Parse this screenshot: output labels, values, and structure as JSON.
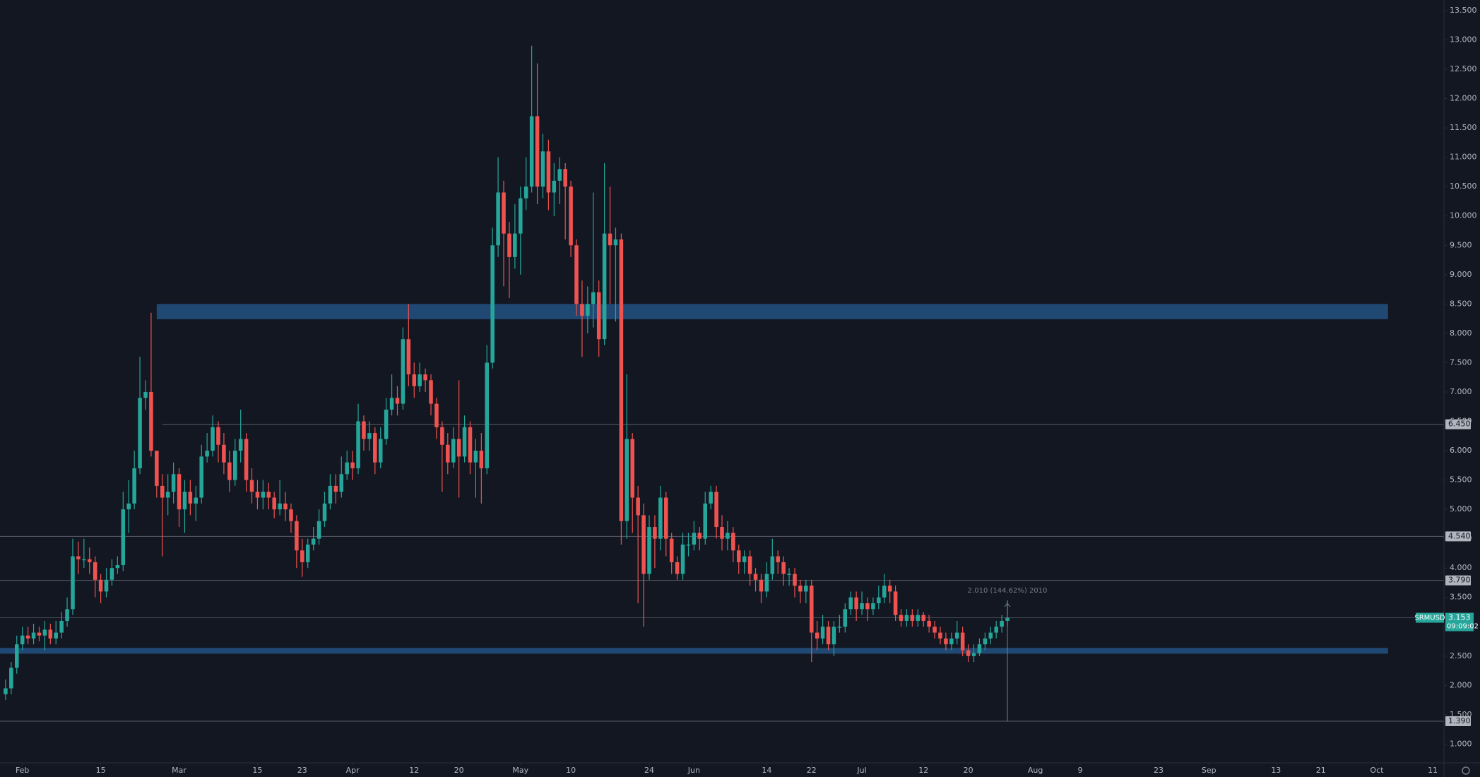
{
  "chart_data": {
    "type": "candlestick",
    "symbol": "SRMUSD",
    "countdown": "09:09:02",
    "up_color": "#26a69a",
    "down_color": "#ef5350",
    "zone_color": "#1f4873",
    "level_color": "#787b86",
    "xlim": [
      "Jan 28",
      "Oct 13"
    ],
    "ylim": [
      0.68,
      13.68
    ],
    "yticks": [
      {
        "value": 1,
        "label": "1.000"
      },
      {
        "value": 1.5,
        "label": "1.500"
      },
      {
        "value": 2,
        "label": "2.000"
      },
      {
        "value": 2.5,
        "label": "2.500"
      },
      {
        "value": 3,
        "label": "3.000"
      },
      {
        "value": 3.5,
        "label": "3.500"
      },
      {
        "value": 4,
        "label": "4.000"
      },
      {
        "value": 4.5,
        "label": "4.500"
      },
      {
        "value": 5,
        "label": "5.000"
      },
      {
        "value": 5.5,
        "label": "5.500"
      },
      {
        "value": 6,
        "label": "6.000"
      },
      {
        "value": 6.5,
        "label": "6.500"
      },
      {
        "value": 7,
        "label": "7.000"
      },
      {
        "value": 7.5,
        "label": "7.500"
      },
      {
        "value": 8,
        "label": "8.000"
      },
      {
        "value": 8.5,
        "label": "8.500"
      },
      {
        "value": 9,
        "label": "9.000"
      },
      {
        "value": 9.5,
        "label": "9.500"
      },
      {
        "value": 10,
        "label": "10.000"
      },
      {
        "value": 10.5,
        "label": "10.500"
      },
      {
        "value": 11,
        "label": "11.000"
      },
      {
        "value": 11.5,
        "label": "11.500"
      },
      {
        "value": 12,
        "label": "12.000"
      },
      {
        "value": 12.5,
        "label": "12.500"
      },
      {
        "value": 13,
        "label": "13.000"
      },
      {
        "value": 13.5,
        "label": "13.500"
      }
    ],
    "xticks": [
      {
        "value": "Feb 1",
        "label": "Feb"
      },
      {
        "value": "Feb 15",
        "label": "15"
      },
      {
        "value": "Mar 1",
        "label": "Mar"
      },
      {
        "value": "Mar 15",
        "label": "15"
      },
      {
        "value": "Mar 23",
        "label": "23"
      },
      {
        "value": "Apr 1",
        "label": "Apr"
      },
      {
        "value": "Apr 12",
        "label": "12"
      },
      {
        "value": "Apr 20",
        "label": "20"
      },
      {
        "value": "May 1",
        "label": "May"
      },
      {
        "value": "May 10",
        "label": "10"
      },
      {
        "value": "May 24",
        "label": "24"
      },
      {
        "value": "Jun 1",
        "label": "Jun"
      },
      {
        "value": "Jun 14",
        "label": "14"
      },
      {
        "value": "Jun 22",
        "label": "22"
      },
      {
        "value": "Jul 1",
        "label": "Jul"
      },
      {
        "value": "Jul 12",
        "label": "12"
      },
      {
        "value": "Jul 20",
        "label": "20"
      },
      {
        "value": "Aug 1",
        "label": "Aug"
      },
      {
        "value": "Aug 9",
        "label": "9"
      },
      {
        "value": "Aug 23",
        "label": "23"
      },
      {
        "value": "Sep 1",
        "label": "Sep"
      },
      {
        "value": "Sep 13",
        "label": "13"
      },
      {
        "value": "Sep 21",
        "label": "21"
      },
      {
        "value": "Oct 1",
        "label": "Oct"
      },
      {
        "value": "Oct 11",
        "label": "11"
      }
    ],
    "levels": [
      {
        "value": 6.45,
        "label": "6.450",
        "from": "Feb 26"
      },
      {
        "value": 4.54,
        "label": "4.540"
      },
      {
        "value": 3.79,
        "label": "3.790"
      },
      {
        "value": 1.39,
        "label": "1.390"
      }
    ],
    "zones": [
      {
        "range": [
          8.24,
          8.5
        ],
        "x": [
          "Feb 25",
          "Oct 3"
        ]
      },
      {
        "range": [
          2.54,
          2.64
        ],
        "x": [
          "Jan 28",
          "Oct 3"
        ]
      }
    ],
    "measure": {
      "x": "Jul 27",
      "from": 1.39,
      "change": 2.01,
      "label": "2.010 (144.62%) 2010"
    },
    "x": [
      "Jan 29",
      "Jan 30",
      "Jan 31",
      "Feb 1",
      "Feb 2",
      "Feb 3",
      "Feb 4",
      "Feb 5",
      "Feb 6",
      "Feb 7",
      "Feb 8",
      "Feb 9",
      "Feb 10",
      "Feb 11",
      "Feb 12",
      "Feb 13",
      "Feb 14",
      "Feb 15",
      "Feb 16",
      "Feb 17",
      "Feb 18",
      "Feb 19",
      "Feb 20",
      "Feb 21",
      "Feb 22",
      "Feb 23",
      "Feb 24",
      "Feb 25",
      "Feb 26",
      "Feb 27",
      "Feb 28",
      "Mar 1",
      "Mar 2",
      "Mar 3",
      "Mar 4",
      "Mar 5",
      "Mar 6",
      "Mar 7",
      "Mar 8",
      "Mar 9",
      "Mar 10",
      "Mar 11",
      "Mar 12",
      "Mar 13",
      "Mar 14",
      "Mar 15",
      "Mar 16",
      "Mar 17",
      "Mar 18",
      "Mar 19",
      "Mar 20",
      "Mar 21",
      "Mar 22",
      "Mar 23",
      "Mar 24",
      "Mar 25",
      "Mar 26",
      "Mar 27",
      "Mar 28",
      "Mar 29",
      "Mar 30",
      "Mar 31",
      "Apr 1",
      "Apr 2",
      "Apr 3",
      "Apr 4",
      "Apr 5",
      "Apr 6",
      "Apr 7",
      "Apr 8",
      "Apr 9",
      "Apr 10",
      "Apr 11",
      "Apr 12",
      "Apr 13",
      "Apr 14",
      "Apr 15",
      "Apr 16",
      "Apr 17",
      "Apr 18",
      "Apr 19",
      "Apr 20",
      "Apr 21",
      "Apr 22",
      "Apr 23",
      "Apr 24",
      "Apr 25",
      "Apr 26",
      "Apr 27",
      "Apr 28",
      "Apr 29",
      "Apr 30",
      "May 1",
      "May 2",
      "May 3",
      "May 4",
      "May 5",
      "May 6",
      "May 7",
      "May 8",
      "May 9",
      "May 10",
      "May 11",
      "May 12",
      "May 13",
      "May 14",
      "May 15",
      "May 16",
      "May 17",
      "May 18",
      "May 19",
      "May 20",
      "May 21",
      "May 22",
      "May 23",
      "May 24",
      "May 25",
      "May 26",
      "May 27",
      "May 28",
      "May 29",
      "May 30",
      "May 31",
      "Jun 1",
      "Jun 2",
      "Jun 3",
      "Jun 4",
      "Jun 5",
      "Jun 6",
      "Jun 7",
      "Jun 8",
      "Jun 9",
      "Jun 10",
      "Jun 11",
      "Jun 12",
      "Jun 13",
      "Jun 14",
      "Jun 15",
      "Jun 16",
      "Jun 17",
      "Jun 18",
      "Jun 19",
      "Jun 20",
      "Jun 21",
      "Jun 22",
      "Jun 23",
      "Jun 24",
      "Jun 25",
      "Jun 26",
      "Jun 27",
      "Jun 28",
      "Jun 29",
      "Jun 30",
      "Jul 1",
      "Jul 2",
      "Jul 3",
      "Jul 4",
      "Jul 5",
      "Jul 6",
      "Jul 7",
      "Jul 8",
      "Jul 9",
      "Jul 10",
      "Jul 11",
      "Jul 12",
      "Jul 13",
      "Jul 14",
      "Jul 15",
      "Jul 16",
      "Jul 17",
      "Jul 18",
      "Jul 19",
      "Jul 20",
      "Jul 21",
      "Jul 22",
      "Jul 23",
      "Jul 24",
      "Jul 25",
      "Jul 26",
      "Jul 27"
    ],
    "open": [
      1.85,
      1.95,
      2.3,
      2.7,
      2.85,
      2.8,
      2.9,
      2.85,
      2.95,
      2.8,
      2.9,
      3.1,
      3.3,
      4.2,
      4.15,
      4.15,
      4.1,
      3.8,
      3.6,
      3.8,
      4.0,
      4.05,
      5.0,
      5.1,
      5.7,
      6.9,
      7.0,
      6.0,
      5.4,
      5.2,
      5.3,
      5.6,
      5.0,
      5.3,
      5.1,
      5.2,
      5.9,
      6.0,
      6.4,
      6.1,
      5.8,
      5.5,
      6.0,
      6.2,
      5.5,
      5.3,
      5.2,
      5.3,
      5.2,
      5.0,
      5.1,
      5.0,
      4.8,
      4.3,
      4.1,
      4.4,
      4.5,
      4.8,
      5.1,
      5.4,
      5.3,
      5.6,
      5.8,
      5.7,
      6.5,
      6.2,
      6.3,
      5.8,
      6.2,
      6.7,
      6.9,
      6.8,
      7.9,
      7.3,
      7.1,
      7.3,
      7.2,
      6.8,
      6.4,
      6.1,
      5.8,
      6.2,
      5.9,
      6.4,
      5.8,
      6.0,
      5.7,
      7.5,
      9.5,
      10.4,
      9.7,
      9.3,
      9.7,
      10.3,
      10.5,
      11.7,
      10.5,
      11.1,
      10.4,
      10.6,
      10.8,
      10.5,
      9.5,
      8.5,
      8.3,
      8.5,
      8.7,
      7.9,
      9.7,
      9.5,
      9.6,
      4.8,
      6.2,
      5.2,
      4.9,
      3.9,
      4.7,
      4.5,
      5.2,
      4.5,
      4.1,
      3.9,
      4.4,
      4.4,
      4.6,
      4.5,
      5.1,
      5.3,
      4.7,
      4.5,
      4.6,
      4.3,
      4.1,
      4.2,
      3.9,
      3.8,
      3.6,
      3.9,
      4.2,
      4.1,
      3.9,
      3.9,
      3.7,
      3.6,
      3.7,
      2.9,
      2.8,
      3.0,
      2.7,
      3.0,
      3.0,
      3.3,
      3.5,
      3.3,
      3.4,
      3.3,
      3.4,
      3.5,
      3.7,
      3.6,
      3.2,
      3.1,
      3.2,
      3.1,
      3.2,
      3.1,
      3.0,
      2.9,
      2.8,
      2.7,
      2.8,
      2.9,
      2.6,
      2.5,
      2.55,
      2.7,
      2.8,
      2.9,
      3.0,
      3.1
    ],
    "high": [
      2.1,
      2.4,
      2.85,
      3.0,
      3.0,
      3.05,
      3.0,
      3.1,
      3.05,
      3.1,
      3.25,
      3.5,
      4.5,
      4.45,
      4.5,
      4.35,
      4.2,
      3.9,
      4.0,
      4.15,
      4.2,
      5.3,
      5.5,
      6.0,
      7.6,
      7.2,
      8.35,
      6.0,
      5.6,
      5.6,
      5.8,
      5.7,
      5.5,
      5.5,
      5.4,
      6.1,
      6.3,
      6.6,
      6.5,
      6.3,
      6.0,
      6.2,
      6.7,
      6.3,
      5.7,
      5.5,
      5.5,
      5.45,
      5.3,
      5.5,
      5.3,
      5.1,
      4.9,
      4.5,
      4.5,
      4.7,
      5.0,
      5.3,
      5.6,
      5.6,
      5.9,
      6.0,
      6.0,
      6.8,
      6.6,
      6.5,
      6.4,
      6.4,
      6.9,
      7.3,
      7.1,
      8.1,
      8.5,
      7.5,
      7.5,
      7.4,
      7.3,
      6.9,
      6.5,
      6.3,
      6.4,
      7.2,
      6.6,
      6.5,
      6.2,
      6.3,
      7.8,
      9.8,
      11.0,
      10.6,
      9.9,
      10.2,
      10.5,
      11.0,
      12.9,
      12.6,
      11.4,
      11.3,
      10.9,
      11.0,
      10.9,
      10.6,
      9.6,
      8.9,
      8.8,
      10.4,
      8.9,
      10.9,
      10.5,
      9.8,
      9.7,
      7.3,
      6.3,
      5.4,
      5.1,
      4.9,
      4.9,
      5.4,
      5.3,
      4.6,
      4.2,
      4.6,
      4.6,
      4.8,
      4.7,
      5.3,
      5.4,
      5.4,
      4.9,
      4.8,
      4.7,
      4.4,
      4.3,
      4.3,
      4.0,
      3.9,
      4.1,
      4.5,
      4.3,
      4.2,
      4.0,
      4.0,
      3.8,
      3.8,
      3.8,
      3.1,
      3.2,
      3.1,
      3.1,
      3.2,
      3.4,
      3.6,
      3.6,
      3.6,
      3.5,
      3.5,
      3.7,
      3.9,
      3.8,
      3.7,
      3.3,
      3.3,
      3.3,
      3.3,
      3.25,
      3.2,
      3.1,
      3.0,
      2.9,
      2.9,
      3.1,
      3.0,
      2.7,
      2.7,
      2.8,
      2.9,
      3.0,
      3.1,
      3.2,
      3.45
    ],
    "low": [
      1.75,
      1.85,
      2.2,
      2.6,
      2.7,
      2.7,
      2.75,
      2.6,
      2.7,
      2.7,
      2.8,
      3.0,
      3.2,
      3.9,
      4.0,
      3.9,
      3.5,
      3.4,
      3.5,
      3.7,
      3.9,
      3.95,
      4.6,
      5.0,
      5.6,
      6.7,
      5.9,
      5.2,
      4.2,
      4.9,
      5.1,
      4.7,
      4.6,
      4.9,
      4.8,
      5.1,
      5.8,
      5.9,
      5.8,
      5.6,
      5.3,
      5.4,
      5.8,
      5.3,
      5.1,
      5.0,
      5.0,
      5.0,
      4.85,
      4.9,
      4.8,
      4.6,
      4.0,
      3.85,
      4.0,
      4.3,
      4.4,
      4.7,
      5.0,
      5.1,
      5.2,
      5.5,
      5.5,
      5.6,
      6.0,
      6.0,
      5.6,
      5.7,
      6.1,
      6.6,
      6.6,
      6.7,
      7.1,
      6.9,
      7.0,
      7.0,
      6.6,
      6.2,
      5.3,
      5.6,
      5.7,
      5.2,
      5.8,
      5.6,
      5.2,
      5.1,
      5.6,
      7.4,
      9.3,
      8.8,
      8.6,
      9.1,
      9.0,
      10.1,
      10.4,
      10.2,
      10.3,
      10.1,
      10.0,
      10.2,
      9.6,
      9.3,
      8.3,
      7.6,
      8.0,
      8.1,
      7.6,
      7.8,
      8.5,
      8.2,
      4.4,
      4.5,
      4.6,
      3.4,
      3.0,
      3.8,
      4.0,
      4.3,
      4.2,
      3.9,
      3.8,
      3.8,
      4.2,
      4.3,
      4.3,
      4.4,
      5.0,
      4.5,
      4.3,
      4.3,
      4.1,
      3.9,
      3.9,
      3.7,
      3.6,
      3.4,
      3.5,
      3.8,
      3.9,
      3.7,
      3.7,
      3.5,
      3.4,
      3.4,
      2.4,
      2.6,
      2.7,
      2.6,
      2.5,
      2.9,
      2.9,
      3.2,
      3.1,
      3.2,
      3.1,
      3.2,
      3.3,
      3.4,
      3.4,
      3.1,
      3.0,
      3.0,
      3.0,
      3.0,
      3.0,
      2.9,
      2.8,
      2.7,
      2.6,
      2.6,
      2.7,
      2.5,
      2.4,
      2.4,
      2.5,
      2.6,
      2.7,
      2.8,
      2.9,
      3.0
    ],
    "close": [
      1.95,
      2.3,
      2.7,
      2.85,
      2.8,
      2.9,
      2.85,
      2.95,
      2.8,
      2.9,
      3.1,
      3.3,
      4.2,
      4.15,
      4.15,
      4.1,
      3.8,
      3.6,
      3.8,
      4.0,
      4.05,
      5.0,
      5.1,
      5.7,
      6.9,
      7.0,
      6.0,
      5.4,
      5.2,
      5.3,
      5.6,
      5.0,
      5.3,
      5.1,
      5.2,
      5.9,
      6.0,
      6.4,
      6.1,
      5.8,
      5.5,
      6.0,
      6.2,
      5.5,
      5.3,
      5.2,
      5.3,
      5.2,
      5.0,
      5.1,
      5.0,
      4.8,
      4.3,
      4.1,
      4.4,
      4.5,
      4.8,
      5.1,
      5.4,
      5.3,
      5.6,
      5.8,
      5.7,
      6.5,
      6.2,
      6.3,
      5.8,
      6.2,
      6.7,
      6.9,
      6.8,
      7.9,
      7.3,
      7.1,
      7.3,
      7.2,
      6.8,
      6.4,
      6.1,
      5.8,
      6.2,
      5.9,
      6.4,
      5.8,
      6.0,
      5.7,
      7.5,
      9.5,
      10.4,
      9.7,
      9.3,
      9.7,
      10.3,
      10.5,
      11.7,
      10.5,
      11.1,
      10.4,
      10.6,
      10.8,
      10.5,
      9.5,
      8.5,
      8.3,
      8.5,
      8.7,
      7.9,
      9.7,
      9.5,
      9.6,
      4.8,
      6.2,
      5.2,
      4.9,
      3.9,
      4.7,
      4.5,
      5.2,
      4.5,
      4.1,
      3.9,
      4.4,
      4.4,
      4.6,
      4.5,
      5.1,
      5.3,
      4.7,
      4.5,
      4.6,
      4.3,
      4.1,
      4.2,
      3.9,
      3.8,
      3.6,
      3.9,
      4.2,
      4.1,
      3.9,
      3.9,
      3.7,
      3.6,
      3.7,
      2.9,
      2.8,
      3.0,
      2.7,
      3.0,
      3.0,
      3.3,
      3.5,
      3.3,
      3.4,
      3.3,
      3.4,
      3.5,
      3.7,
      3.6,
      3.2,
      3.1,
      3.2,
      3.1,
      3.2,
      3.1,
      3.0,
      2.9,
      2.8,
      2.7,
      2.8,
      2.9,
      2.6,
      2.5,
      2.55,
      2.7,
      2.8,
      2.9,
      3.0,
      3.1,
      3.153
    ]
  }
}
